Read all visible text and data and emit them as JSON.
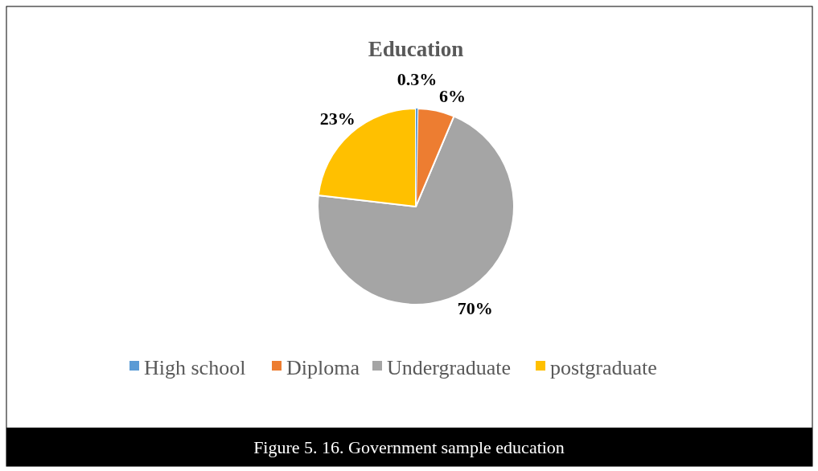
{
  "chart_data": {
    "type": "pie",
    "title": "Education",
    "categories": [
      "High school",
      "Diploma",
      "Undergraduate",
      "postgraduate"
    ],
    "values": [
      0.3,
      6,
      70,
      23
    ],
    "colors": [
      "#5b9bd5",
      "#ed7d31",
      "#a5a5a5",
      "#ffc000"
    ],
    "value_labels": [
      "0.3%",
      "6%",
      "70%",
      "23%"
    ],
    "legend": "bottom",
    "annotations": [
      "Figure 5. 16. Government sample education"
    ]
  }
}
